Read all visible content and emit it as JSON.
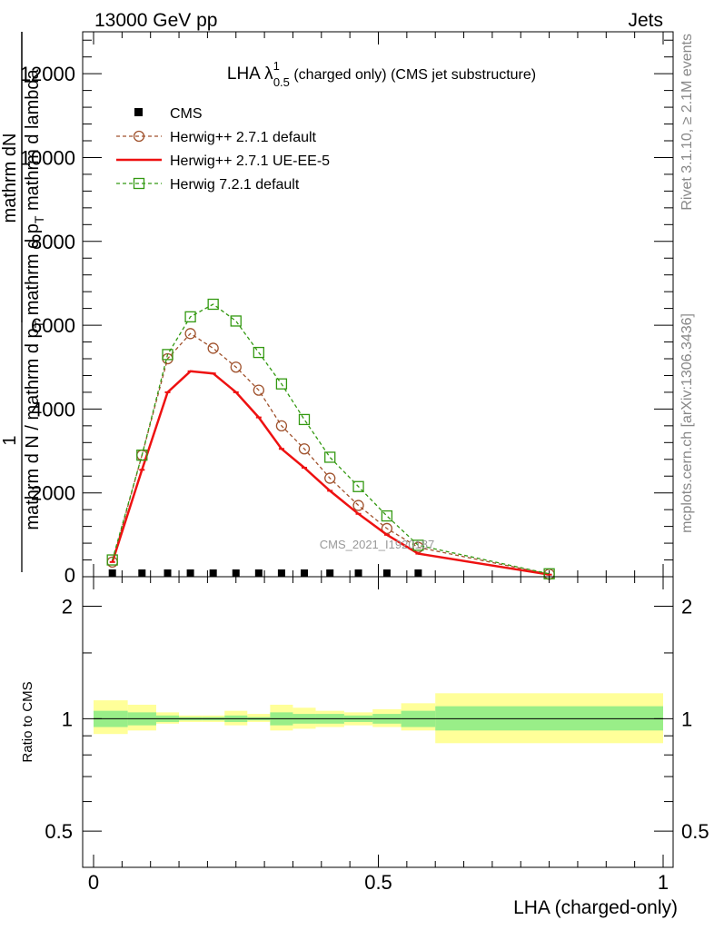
{
  "header": {
    "left": "13000 GeV pp",
    "right": "Jets"
  },
  "side_labels": {
    "rivet": "Rivet 3.1.10, ≥ 2.1M events",
    "mcplots": "mcplots.cern.ch [arXiv:1306.3436]"
  },
  "watermark": "CMS_2021_I1920187",
  "chart_data": [
    {
      "type": "line",
      "title": {
        "main": "LHA λ",
        "sup": "1",
        "sub": "0.5",
        "rest": " (charged only) (CMS jet substructure)"
      },
      "ylabel": {
        "num": "mathrm dN",
        "frac1": "1",
        "den_parts": [
          "mathrm d N / mathrm d p",
          "T",
          " mathrm d p",
          "T",
          " mathrm d lambda"
        ]
      },
      "xlim": [
        0,
        1
      ],
      "ylim": [
        0,
        13000
      ],
      "yticks": [
        2000,
        4000,
        6000,
        8000,
        10000,
        12000
      ],
      "yticklabels": [
        "2000",
        "4000",
        "6000",
        "8000",
        "10000",
        "12000"
      ],
      "zero_label": "0",
      "x": [
        0.033,
        0.085,
        0.13,
        0.17,
        0.21,
        0.25,
        0.29,
        0.33,
        0.37,
        0.415,
        0.465,
        0.515,
        0.57,
        0.8
      ],
      "series": [
        {
          "name": "CMS",
          "style": "marker",
          "color": "#000000",
          "values": [
            0,
            0,
            0,
            0,
            0,
            0,
            0,
            0,
            0,
            0,
            0,
            0,
            0,
            null
          ]
        },
        {
          "name": "Herwig++ 2.7.1 default",
          "style": "dashed-circle",
          "color": "#a0522d",
          "values": [
            350,
            2900,
            5200,
            5800,
            5450,
            5000,
            4450,
            3600,
            3050,
            2350,
            1700,
            1150,
            700,
            60
          ]
        },
        {
          "name": "Herwig++ 2.7.1 UE-EE-5",
          "style": "solid-line",
          "color": "#ee1111",
          "values": [
            350,
            2550,
            4400,
            4900,
            4850,
            4400,
            3800,
            3050,
            2600,
            2050,
            1500,
            1000,
            550,
            50
          ]
        },
        {
          "name": "Herwig 7.2.1 default",
          "style": "dashed-square",
          "color": "#339911",
          "values": [
            400,
            2900,
            5300,
            6200,
            6500,
            6100,
            5350,
            4600,
            3750,
            2850,
            2150,
            1450,
            750,
            70
          ]
        }
      ]
    },
    {
      "type": "area",
      "ylabel": "Ratio to CMS",
      "ylim": [
        0.4,
        2.4
      ],
      "yticks": [
        0.5,
        1,
        2
      ],
      "yticklabels": [
        "0.5",
        "1",
        "2"
      ],
      "xlim": [
        0,
        1
      ],
      "xticks": [
        0,
        0.5,
        1
      ],
      "xticklabels": [
        "0",
        "0.5",
        "1"
      ],
      "xlabel": "LHA (charged-only)",
      "bin_edges": [
        0,
        0.06,
        0.11,
        0.15,
        0.19,
        0.23,
        0.27,
        0.31,
        0.35,
        0.39,
        0.44,
        0.49,
        0.54,
        0.6,
        1.0
      ],
      "stat_band": {
        "color": "#99ee88",
        "low": [
          0.95,
          0.96,
          0.98,
          0.99,
          0.99,
          0.98,
          0.99,
          0.96,
          0.97,
          0.97,
          0.98,
          0.97,
          0.95,
          0.93
        ],
        "high": [
          1.05,
          1.04,
          1.02,
          1.01,
          1.01,
          1.02,
          1.01,
          1.04,
          1.03,
          1.03,
          1.02,
          1.03,
          1.05,
          1.08
        ]
      },
      "total_band": {
        "color": "#ffff99",
        "low": [
          0.91,
          0.93,
          0.97,
          0.98,
          0.98,
          0.96,
          0.98,
          0.93,
          0.94,
          0.95,
          0.96,
          0.95,
          0.93,
          0.86
        ],
        "high": [
          1.12,
          1.09,
          1.04,
          1.02,
          1.02,
          1.05,
          1.03,
          1.09,
          1.07,
          1.05,
          1.04,
          1.06,
          1.1,
          1.17
        ]
      },
      "reference_line": 1
    }
  ]
}
